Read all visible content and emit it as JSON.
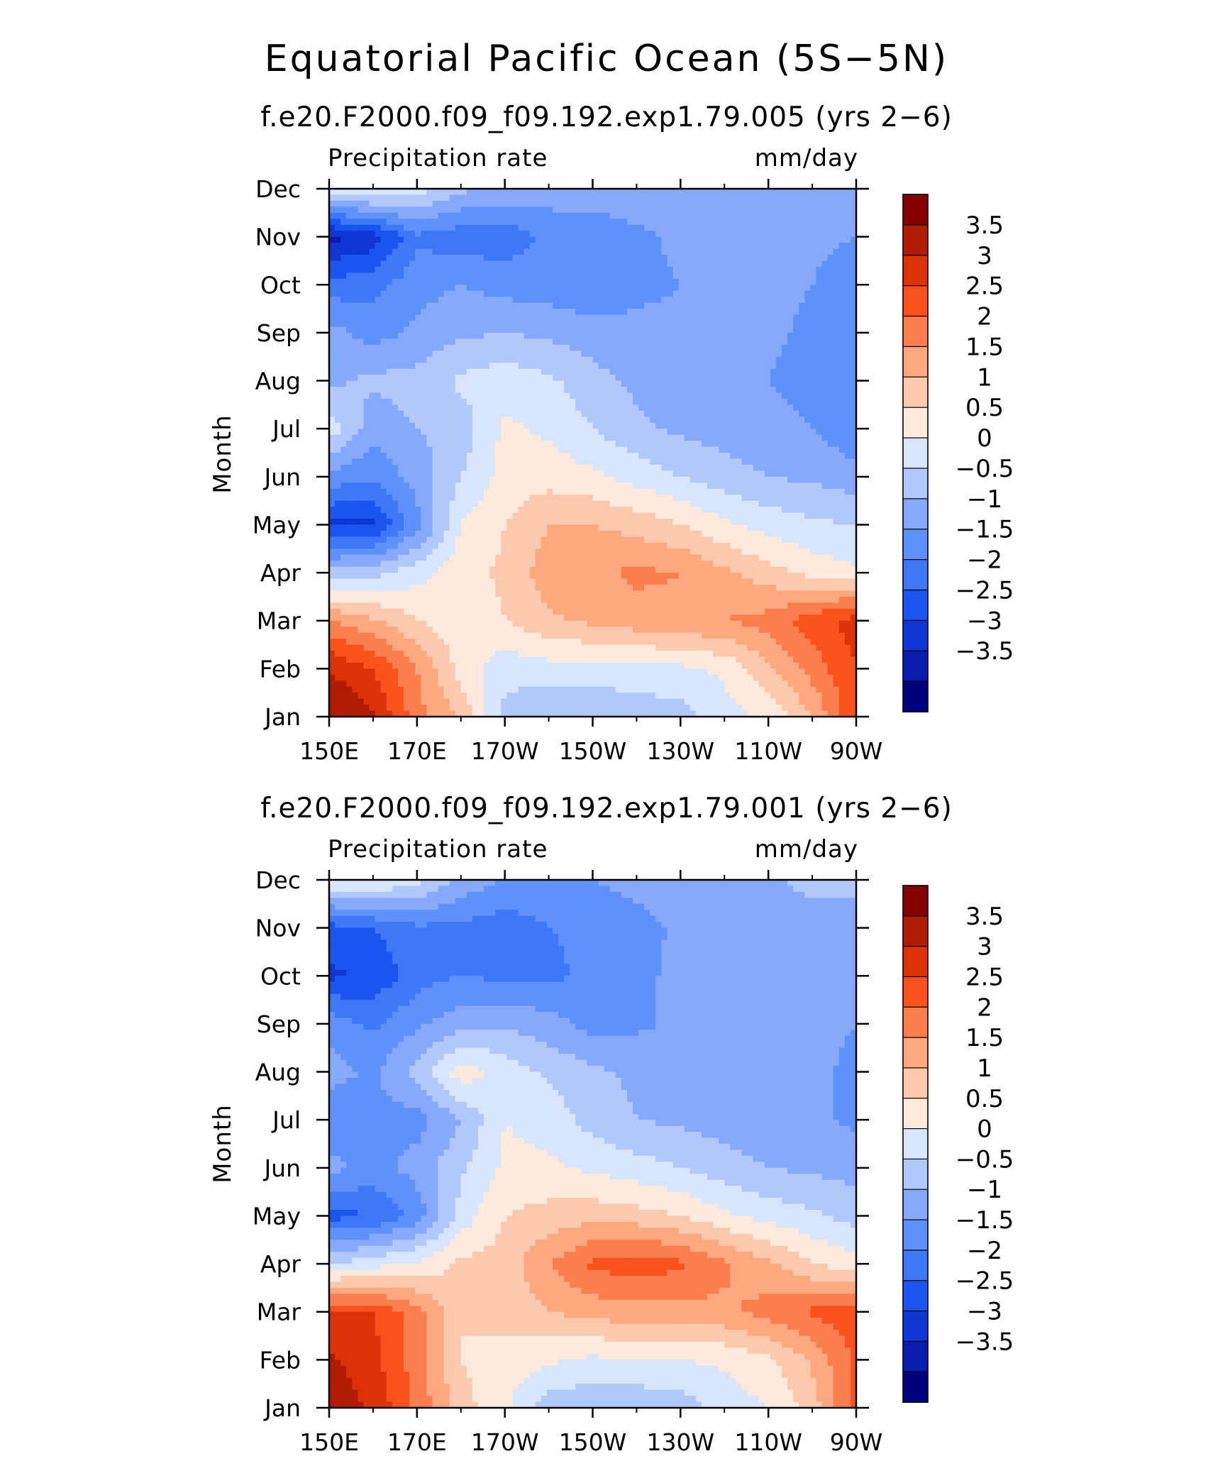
{
  "title": "Equatorial Pacific Ocean (5S−5N)",
  "chart_data": [
    {
      "type": "heatmap",
      "subtitle": "f.e20.F2000.f09_f09.192.exp1.79.005 (yrs 2−6)",
      "left_label": "Precipitation rate",
      "right_label": "mm/day",
      "ylabel": "Month",
      "x_ticks": [
        "150E",
        "170E",
        "170W",
        "150W",
        "130W",
        "110W",
        "90W"
      ],
      "x_tick_lon": [
        150,
        170,
        190,
        210,
        230,
        250,
        270
      ],
      "y_ticks": [
        "Jan",
        "Feb",
        "Mar",
        "Apr",
        "May",
        "Jun",
        "Jul",
        "Aug",
        "Sep",
        "Oct",
        "Nov",
        "Dec"
      ],
      "xlim": [
        150,
        270
      ],
      "ylim": [
        1,
        12
      ],
      "lon": [
        150,
        160,
        170,
        180,
        190,
        200,
        210,
        220,
        230,
        240,
        250,
        260,
        270
      ],
      "months": [
        "Jan",
        "Feb",
        "Mar",
        "Apr",
        "May",
        "Jun",
        "Jul",
        "Aug",
        "Sep",
        "Oct",
        "Nov",
        "Dec"
      ],
      "values": [
        [
          4.0,
          3.6,
          2.2,
          1.4,
          -0.2,
          -0.5,
          -0.5,
          -0.3,
          -0.2,
          0.3,
          0.6,
          1.5,
          3.0
        ],
        [
          3.5,
          3.0,
          2.0,
          0.8,
          0.2,
          0.3,
          0.3,
          0.3,
          0.4,
          0.6,
          1.4,
          2.2,
          3.0
        ],
        [
          2.0,
          1.6,
          1.0,
          0.7,
          1.0,
          1.4,
          1.6,
          1.8,
          1.9,
          2.0,
          2.2,
          2.8,
          3.2
        ],
        [
          -0.3,
          -0.2,
          0.3,
          0.8,
          1.1,
          1.8,
          1.9,
          2.1,
          2.0,
          1.6,
          1.2,
          0.8,
          0.6
        ],
        [
          -2.6,
          -2.6,
          -1.2,
          0.5,
          1.0,
          1.5,
          1.5,
          1.3,
          1.0,
          0.6,
          0.3,
          0.1,
          0.0
        ],
        [
          -1.2,
          -1.4,
          -0.8,
          0.0,
          0.7,
          0.8,
          0.6,
          0.3,
          0.0,
          -0.3,
          -0.5,
          -0.6,
          -0.8
        ],
        [
          0.3,
          -0.8,
          -0.5,
          -0.3,
          0.6,
          0.4,
          0.0,
          -0.4,
          -0.6,
          -0.7,
          -0.8,
          -1.0,
          -1.4
        ],
        [
          -0.6,
          -0.4,
          -0.3,
          0.1,
          0.3,
          0.1,
          -0.3,
          -0.6,
          -0.8,
          -0.9,
          -1.0,
          -1.2,
          -1.5
        ],
        [
          -0.8,
          -1.2,
          -0.9,
          -0.6,
          -0.5,
          -0.6,
          -0.8,
          -0.9,
          -0.9,
          -0.9,
          -0.9,
          -1.1,
          -1.4
        ],
        [
          -1.8,
          -1.7,
          -1.2,
          -1.0,
          -1.2,
          -1.3,
          -1.4,
          -1.1,
          -1.0,
          -0.9,
          -0.9,
          -1.0,
          -1.3
        ],
        [
          -3.2,
          -2.8,
          -1.6,
          -1.8,
          -1.8,
          -1.4,
          -1.3,
          -1.1,
          -0.9,
          -0.8,
          -0.8,
          -0.9,
          -1.0
        ],
        [
          0.4,
          0.6,
          0.2,
          -0.4,
          -0.6,
          -0.7,
          -0.7,
          -0.7,
          -0.7,
          -0.7,
          -0.7,
          -0.7,
          -0.7
        ]
      ],
      "levels": [
        -3.5,
        -3,
        -2.5,
        -2,
        -1.5,
        -1,
        -0.5,
        0,
        0.5,
        1,
        1.5,
        2,
        2.5,
        3,
        3.5
      ],
      "colorbar_labels": [
        "3.5",
        "3",
        "2.5",
        "2",
        "1.5",
        "1",
        "0.5",
        "0",
        "−0.5",
        "−1",
        "−1.5",
        "−2",
        "−2.5",
        "−3",
        "−3.5"
      ],
      "colors": [
        "#00007f",
        "#0a1cb0",
        "#0e37d6",
        "#1b55ef",
        "#3e78f6",
        "#5e92fa",
        "#86a9fb",
        "#b1c8fc",
        "#d7e6fc",
        "#feeadc",
        "#fdc9ae",
        "#fda87f",
        "#fb7e4e",
        "#f9521d",
        "#dc3208",
        "#b11a03",
        "#840000"
      ]
    },
    {
      "type": "heatmap",
      "subtitle": "f.e20.F2000.f09_f09.192.exp1.79.001 (yrs 2−6)",
      "left_label": "Precipitation rate",
      "right_label": "mm/day",
      "ylabel": "Month",
      "x_ticks": [
        "150E",
        "170E",
        "170W",
        "150W",
        "130W",
        "110W",
        "90W"
      ],
      "x_tick_lon": [
        150,
        170,
        190,
        210,
        230,
        250,
        270
      ],
      "y_ticks": [
        "Jan",
        "Feb",
        "Mar",
        "Apr",
        "May",
        "Jun",
        "Jul",
        "Aug",
        "Sep",
        "Oct",
        "Nov",
        "Dec"
      ],
      "xlim": [
        150,
        270
      ],
      "ylim": [
        1,
        12
      ],
      "lon": [
        150,
        160,
        170,
        180,
        190,
        200,
        210,
        220,
        230,
        240,
        250,
        260,
        270
      ],
      "months": [
        "Jan",
        "Feb",
        "Mar",
        "Apr",
        "May",
        "Jun",
        "Jul",
        "Aug",
        "Sep",
        "Oct",
        "Nov",
        "Dec"
      ],
      "values": [
        [
          3.8,
          3.4,
          2.4,
          1.2,
          0.6,
          -0.3,
          -0.4,
          -0.4,
          -0.3,
          0.2,
          0.5,
          1.2,
          2.8
        ],
        [
          3.6,
          3.2,
          2.2,
          1.0,
          0.8,
          0.6,
          0.4,
          0.5,
          0.5,
          0.6,
          0.9,
          1.6,
          2.6
        ],
        [
          3.0,
          3.0,
          2.2,
          1.0,
          1.2,
          1.5,
          1.7,
          1.8,
          1.8,
          1.9,
          2.2,
          2.6,
          2.8
        ],
        [
          0.0,
          0.3,
          0.6,
          1.1,
          1.2,
          2.0,
          2.6,
          2.8,
          2.6,
          2.1,
          1.6,
          1.0,
          0.7
        ],
        [
          -2.2,
          -2.0,
          -1.3,
          0.2,
          1.0,
          1.2,
          1.3,
          1.2,
          1.0,
          0.6,
          0.3,
          0.1,
          -0.2
        ],
        [
          -0.8,
          -1.2,
          -0.8,
          -0.1,
          0.6,
          0.6,
          0.4,
          0.2,
          0.0,
          -0.3,
          -0.5,
          -0.6,
          -0.7
        ],
        [
          -1.4,
          -1.2,
          -1.2,
          -0.5,
          0.5,
          0.3,
          -0.2,
          -0.5,
          -0.6,
          -0.7,
          -0.8,
          -0.9,
          -1.1
        ],
        [
          -0.8,
          -1.1,
          -0.3,
          0.8,
          0.3,
          -0.1,
          -0.4,
          -0.6,
          -0.7,
          -0.8,
          -0.9,
          -0.9,
          -1.1
        ],
        [
          -1.2,
          -1.6,
          -1.1,
          -0.7,
          -0.6,
          -0.8,
          -1.2,
          -1.1,
          -0.9,
          -0.9,
          -0.9,
          -0.9,
          -1.0
        ],
        [
          -2.6,
          -2.4,
          -1.7,
          -1.5,
          -1.6,
          -1.6,
          -1.4,
          -1.1,
          -0.9,
          -0.8,
          -0.8,
          -0.8,
          -0.9
        ],
        [
          -2.2,
          -2.0,
          -1.6,
          -1.6,
          -1.8,
          -1.5,
          -1.4,
          -1.2,
          -0.9,
          -0.8,
          -0.8,
          -0.8,
          -0.9
        ],
        [
          0.5,
          0.6,
          0.2,
          -0.7,
          -1.0,
          -1.1,
          -1.0,
          -0.8,
          -0.7,
          -0.7,
          -0.6,
          -0.3,
          -0.3
        ]
      ],
      "levels": [
        -3.5,
        -3,
        -2.5,
        -2,
        -1.5,
        -1,
        -0.5,
        0,
        0.5,
        1,
        1.5,
        2,
        2.5,
        3,
        3.5
      ],
      "colorbar_labels": [
        "3.5",
        "3",
        "2.5",
        "2",
        "1.5",
        "1",
        "0.5",
        "0",
        "−0.5",
        "−1",
        "−1.5",
        "−2",
        "−2.5",
        "−3",
        "−3.5"
      ],
      "colors": [
        "#00007f",
        "#0a1cb0",
        "#0e37d6",
        "#1b55ef",
        "#3e78f6",
        "#5e92fa",
        "#86a9fb",
        "#b1c8fc",
        "#d7e6fc",
        "#feeadc",
        "#fdc9ae",
        "#fda87f",
        "#fb7e4e",
        "#f9521d",
        "#dc3208",
        "#b11a03",
        "#840000"
      ]
    }
  ]
}
